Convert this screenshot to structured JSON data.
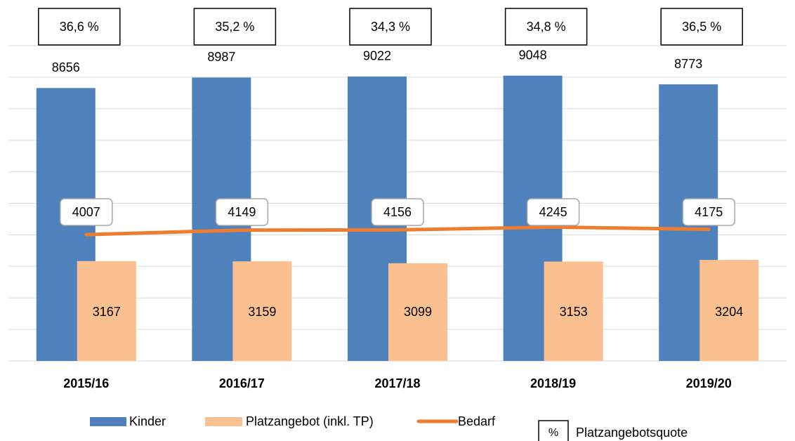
{
  "chart_data": {
    "type": "bar",
    "categories": [
      "2015/16",
      "2016/17",
      "2017/18",
      "2018/19",
      "2019/20"
    ],
    "series": [
      {
        "name": "Kinder",
        "color": "#4f81bd",
        "values": [
          8656,
          8987,
          9022,
          9048,
          8773
        ]
      },
      {
        "name": "Platzangebot (inkl. TP)",
        "color": "#fac090",
        "values": [
          3167,
          3159,
          3099,
          3153,
          3204
        ]
      },
      {
        "name": "Bedarf",
        "type": "line",
        "color": "#ed7d31",
        "values": [
          4007,
          4149,
          4156,
          4245,
          4175
        ]
      }
    ],
    "quote": {
      "name": "Platzangebotsquote",
      "symbol": "%",
      "values": [
        36.6,
        35.2,
        34.3,
        34.8,
        36.5
      ],
      "value_labels": [
        "36,6 %",
        "35,2 %",
        "34,3 %",
        "34,8 %",
        "36,5 %"
      ]
    },
    "ylim": [
      0,
      10000
    ],
    "yticks": [
      0,
      1000,
      2000,
      3000,
      4000,
      5000,
      6000,
      7000,
      8000,
      9000,
      10000
    ],
    "grid": true
  }
}
